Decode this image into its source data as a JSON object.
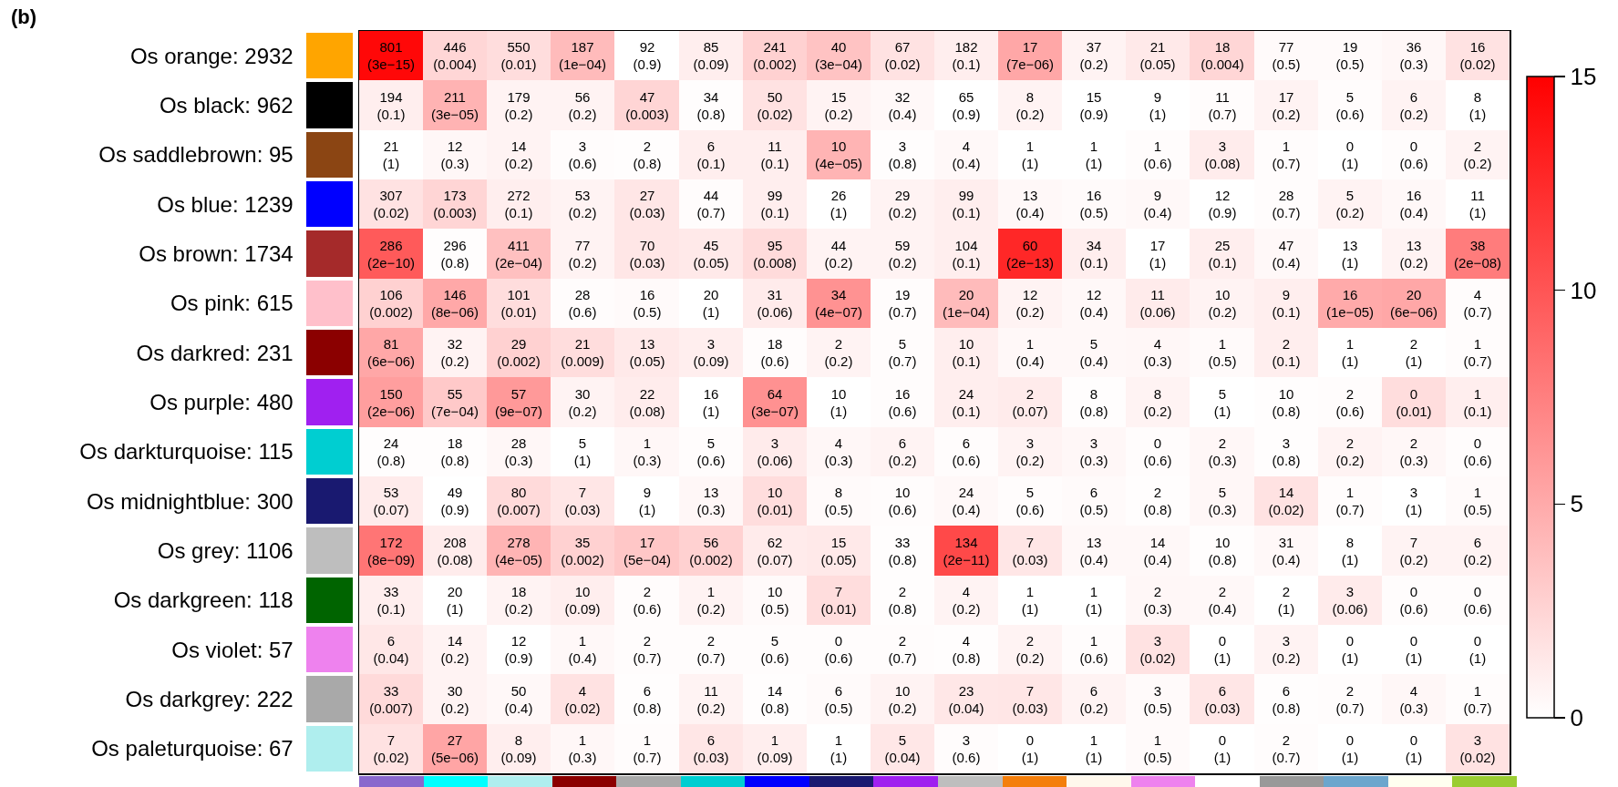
{
  "chart_data": {
    "type": "heatmap",
    "annotations": [
      "(b)"
    ],
    "tick_labels": "y",
    "categories": [
      null,
      null,
      null,
      null,
      null,
      null,
      null,
      null,
      null,
      null,
      null,
      null,
      null,
      null,
      null,
      null,
      null,
      null
    ],
    "y_categories": [
      "Os orange: 2932",
      "Os black: 962",
      "Os saddlebrown: 95",
      "Os blue: 1239",
      "Os brown: 1734",
      "Os pink: 615",
      "Os darkred: 231",
      "Os purple: 480",
      "Os darkturquoise: 115",
      "Os midnightblue: 300",
      "Os grey: 1106",
      "Os darkgreen: 118",
      "Os violet: 57",
      "Os darkgrey: 222",
      "Os paleturquoise: 67"
    ],
    "clim": [
      0,
      15
    ],
    "cticks": [
      0,
      5,
      10,
      15
    ],
    "cells": [
      [
        14.5,
        2.4,
        2,
        4,
        0.0,
        1.0,
        2.7,
        3.5,
        1.7,
        1,
        5.2,
        0.7,
        1.3,
        2.4,
        0.3,
        0.3,
        0.5,
        1.7
      ],
      [
        1,
        4.5,
        0.7,
        0.7,
        2.5,
        0.1,
        1.7,
        0.7,
        0.4,
        0.0,
        0.7,
        0.0,
        0,
        0.2,
        0.7,
        0.2,
        0.7,
        0
      ],
      [
        0,
        0.5,
        0.7,
        0.2,
        0.1,
        1,
        1,
        4.4,
        0.1,
        0.4,
        0,
        0,
        0.2,
        1.1,
        0.2,
        0,
        0.2,
        0.7
      ],
      [
        1.7,
        2.5,
        1,
        0.7,
        1.5,
        0.2,
        1,
        0,
        0.7,
        1,
        0.4,
        0.3,
        0.4,
        0.0,
        0.2,
        0.7,
        0.4,
        0
      ],
      [
        9.7,
        0.1,
        3.7,
        0.7,
        1.5,
        1.3,
        2.1,
        0.7,
        0.7,
        1,
        12.7,
        1,
        0,
        1,
        0.4,
        0,
        0.7,
        7.7
      ],
      [
        2.7,
        5.1,
        2,
        0.2,
        0.3,
        0,
        1.2,
        6.4,
        0.2,
        4,
        0.7,
        0.4,
        1.2,
        0.7,
        1,
        5,
        5.2,
        0.2
      ],
      [
        5.2,
        0.7,
        2.7,
        2.0,
        1.3,
        1.0,
        0.2,
        0.7,
        0.2,
        1,
        0.4,
        0.4,
        0.5,
        0.3,
        1,
        0,
        0,
        0.2
      ],
      [
        5.7,
        3.2,
        6.0,
        0.7,
        1.1,
        0,
        6.5,
        0,
        0.2,
        1,
        1.2,
        0.1,
        0.7,
        0,
        0.1,
        0.2,
        2,
        1
      ],
      [
        0.1,
        0.1,
        0.5,
        0,
        0.5,
        0.2,
        1.2,
        0.5,
        0.7,
        0.2,
        0.7,
        0.5,
        0.2,
        0.5,
        0.1,
        0.7,
        0.5,
        0.2
      ],
      [
        1.2,
        0.0,
        2.2,
        1.5,
        0,
        0.5,
        2,
        0.3,
        0.2,
        0.4,
        0.2,
        0.3,
        0.1,
        0.5,
        1.7,
        0.2,
        0,
        0.3
      ],
      [
        8.1,
        1.1,
        4.4,
        2.7,
        3.3,
        2.7,
        1.2,
        1.3,
        0.1,
        10.7,
        1.5,
        0.4,
        0.4,
        0.1,
        0.4,
        0,
        0.7,
        0.7
      ],
      [
        1,
        0,
        0.7,
        1.0,
        0.2,
        0.7,
        0.3,
        2,
        0.1,
        0.7,
        0,
        0,
        0.5,
        0.4,
        0,
        1.2,
        0.2,
        0.2
      ],
      [
        1.4,
        0.7,
        0.0,
        0.4,
        0.2,
        0.2,
        0.2,
        0.2,
        0.2,
        0.1,
        0.7,
        0.2,
        1.7,
        0,
        0.7,
        0,
        0,
        0
      ],
      [
        2.2,
        0.7,
        0.4,
        1.7,
        0.1,
        0.7,
        0.1,
        0.3,
        0.7,
        1.4,
        1.5,
        0.7,
        0.3,
        1.5,
        0.1,
        0.2,
        0.5,
        0.2
      ],
      [
        1.7,
        5.3,
        1.0,
        0.5,
        0.2,
        1.5,
        1.0,
        0,
        1.4,
        0.2,
        0,
        0,
        0.3,
        0,
        0.2,
        0,
        0,
        1.7
      ]
    ],
    "cell_labels": [
      [
        "801\n(3e−15)",
        "446\n(0.004)",
        "550\n(0.01)",
        "187\n(1e−04)",
        "92\n(0.9)",
        "85\n(0.09)",
        "241\n(0.002)",
        "40\n(3e−04)",
        "67\n(0.02)",
        "182\n(0.1)",
        "17\n(7e−06)",
        "37\n(0.2)",
        "21\n(0.05)",
        "18\n(0.004)",
        "77\n(0.5)",
        "19\n(0.5)",
        "36\n(0.3)",
        "16\n(0.02)"
      ],
      [
        "194\n(0.1)",
        "211\n(3e−05)",
        "179\n(0.2)",
        "56\n(0.2)",
        "47\n(0.003)",
        "34\n(0.8)",
        "50\n(0.02)",
        "15\n(0.2)",
        "32\n(0.4)",
        "65\n(0.9)",
        "8\n(0.2)",
        "15\n(0.9)",
        "9\n(1)",
        "11\n(0.7)",
        "17\n(0.2)",
        "5\n(0.6)",
        "6\n(0.2)",
        "8\n(1)"
      ],
      [
        "21\n(1)",
        "12\n(0.3)",
        "14\n(0.2)",
        "3\n(0.6)",
        "2\n(0.8)",
        "6\n(0.1)",
        "11\n(0.1)",
        "10\n(4e−05)",
        "3\n(0.8)",
        "4\n(0.4)",
        "1\n(1)",
        "1\n(1)",
        "1\n(0.6)",
        "3\n(0.08)",
        "1\n(0.7)",
        "0\n(1)",
        "0\n(0.6)",
        "2\n(0.2)"
      ],
      [
        "307\n(0.02)",
        "173\n(0.003)",
        "272\n(0.1)",
        "53\n(0.2)",
        "27\n(0.03)",
        "44\n(0.7)",
        "99\n(0.1)",
        "26\n(1)",
        "29\n(0.2)",
        "99\n(0.1)",
        "13\n(0.4)",
        "16\n(0.5)",
        "9\n(0.4)",
        "12\n(0.9)",
        "28\n(0.7)",
        "5\n(0.2)",
        "16\n(0.4)",
        "11\n(1)"
      ],
      [
        "286\n(2e−10)",
        "296\n(0.8)",
        "411\n(2e−04)",
        "77\n(0.2)",
        "70\n(0.03)",
        "45\n(0.05)",
        "95\n(0.008)",
        "44\n(0.2)",
        "59\n(0.2)",
        "104\n(0.1)",
        "60\n(2e−13)",
        "34\n(0.1)",
        "17\n(1)",
        "25\n(0.1)",
        "47\n(0.4)",
        "13\n(1)",
        "13\n(0.2)",
        "38\n(2e−08)"
      ],
      [
        "106\n(0.002)",
        "146\n(8e−06)",
        "101\n(0.01)",
        "28\n(0.6)",
        "16\n(0.5)",
        "20\n(1)",
        "31\n(0.06)",
        "34\n(4e−07)",
        "19\n(0.7)",
        "20\n(1e−04)",
        "12\n(0.2)",
        "12\n(0.4)",
        "11\n(0.06)",
        "10\n(0.2)",
        "9\n(0.1)",
        "16\n(1e−05)",
        "20\n(6e−06)",
        "4\n(0.7)"
      ],
      [
        "81\n(6e−06)",
        "32\n(0.2)",
        "29\n(0.002)",
        "21\n(0.009)",
        "13\n(0.05)",
        "3\n(0.09)",
        "18\n(0.6)",
        "2\n(0.2)",
        "5\n(0.7)",
        "10\n(0.1)",
        "1\n(0.4)",
        "5\n(0.4)",
        "4\n(0.3)",
        "1\n(0.5)",
        "2\n(0.1)",
        "1\n(1)",
        "2\n(1)",
        "1\n(0.7)"
      ],
      [
        "150\n(2e−06)",
        "55\n(7e−04)",
        "57\n(9e−07)",
        "30\n(0.2)",
        "22\n(0.08)",
        "16\n(1)",
        "64\n(3e−07)",
        "10\n(1)",
        "16\n(0.6)",
        "24\n(0.1)",
        "2\n(0.07)",
        "8\n(0.8)",
        "8\n(0.2)",
        "5\n(1)",
        "10\n(0.8)",
        "2\n(0.6)",
        "0\n(0.01)",
        "1\n(0.1)"
      ],
      [
        "24\n(0.8)",
        "18\n(0.8)",
        "28\n(0.3)",
        "5\n(1)",
        "1\n(0.3)",
        "5\n(0.6)",
        "3\n(0.06)",
        "4\n(0.3)",
        "6\n(0.2)",
        "6\n(0.6)",
        "3\n(0.2)",
        "3\n(0.3)",
        "0\n(0.6)",
        "2\n(0.3)",
        "3\n(0.8)",
        "2\n(0.2)",
        "2\n(0.3)",
        "0\n(0.6)"
      ],
      [
        "53\n(0.07)",
        "49\n(0.9)",
        "80\n(0.007)",
        "7\n(0.03)",
        "9\n(1)",
        "13\n(0.3)",
        "10\n(0.01)",
        "8\n(0.5)",
        "10\n(0.6)",
        "24\n(0.4)",
        "5\n(0.6)",
        "6\n(0.5)",
        "2\n(0.8)",
        "5\n(0.3)",
        "14\n(0.02)",
        "1\n(0.7)",
        "3\n(1)",
        "1\n(0.5)"
      ],
      [
        "172\n(8e−09)",
        "208\n(0.08)",
        "278\n(4e−05)",
        "35\n(0.002)",
        "17\n(5e−04)",
        "56\n(0.002)",
        "62\n(0.07)",
        "15\n(0.05)",
        "33\n(0.8)",
        "134\n(2e−11)",
        "7\n(0.03)",
        "13\n(0.4)",
        "14\n(0.4)",
        "10\n(0.8)",
        "31\n(0.4)",
        "8\n(1)",
        "7\n(0.2)",
        "6\n(0.2)"
      ],
      [
        "33\n(0.1)",
        "20\n(1)",
        "18\n(0.2)",
        "10\n(0.09)",
        "2\n(0.6)",
        "1\n(0.2)",
        "10\n(0.5)",
        "7\n(0.01)",
        "2\n(0.8)",
        "4\n(0.2)",
        "1\n(1)",
        "1\n(1)",
        "2\n(0.3)",
        "2\n(0.4)",
        "2\n(1)",
        "3\n(0.06)",
        "0\n(0.6)",
        "0\n(0.6)"
      ],
      [
        "6\n(0.04)",
        "14\n(0.2)",
        "12\n(0.9)",
        "1\n(0.4)",
        "2\n(0.7)",
        "2\n(0.7)",
        "5\n(0.6)",
        "0\n(0.6)",
        "2\n(0.7)",
        "4\n(0.8)",
        "2\n(0.2)",
        "1\n(0.6)",
        "3\n(0.02)",
        "0\n(1)",
        "3\n(0.2)",
        "0\n(1)",
        "0\n(1)",
        "0\n(1)"
      ],
      [
        "33\n(0.007)",
        "30\n(0.2)",
        "50\n(0.4)",
        "4\n(0.02)",
        "6\n(0.8)",
        "11\n(0.2)",
        "14\n(0.8)",
        "6\n(0.5)",
        "10\n(0.2)",
        "23\n(0.04)",
        "7\n(0.03)",
        "6\n(0.2)",
        "3\n(0.5)",
        "6\n(0.03)",
        "6\n(0.8)",
        "2\n(0.7)",
        "4\n(0.3)",
        "1\n(0.7)"
      ],
      [
        "7\n(0.02)",
        "27\n(5e−06)",
        "8\n(0.09)",
        "1\n(0.3)",
        "1\n(0.7)",
        "6\n(0.03)",
        "1\n(0.09)",
        "1\n(1)",
        "5\n(0.04)",
        "3\n(0.6)",
        "0\n(1)",
        "1\n(1)",
        "1\n(0.5)",
        "0\n(1)",
        "2\n(0.7)",
        "0\n(1)",
        "0\n(1)",
        "3\n(0.02)"
      ]
    ]
  }
}
